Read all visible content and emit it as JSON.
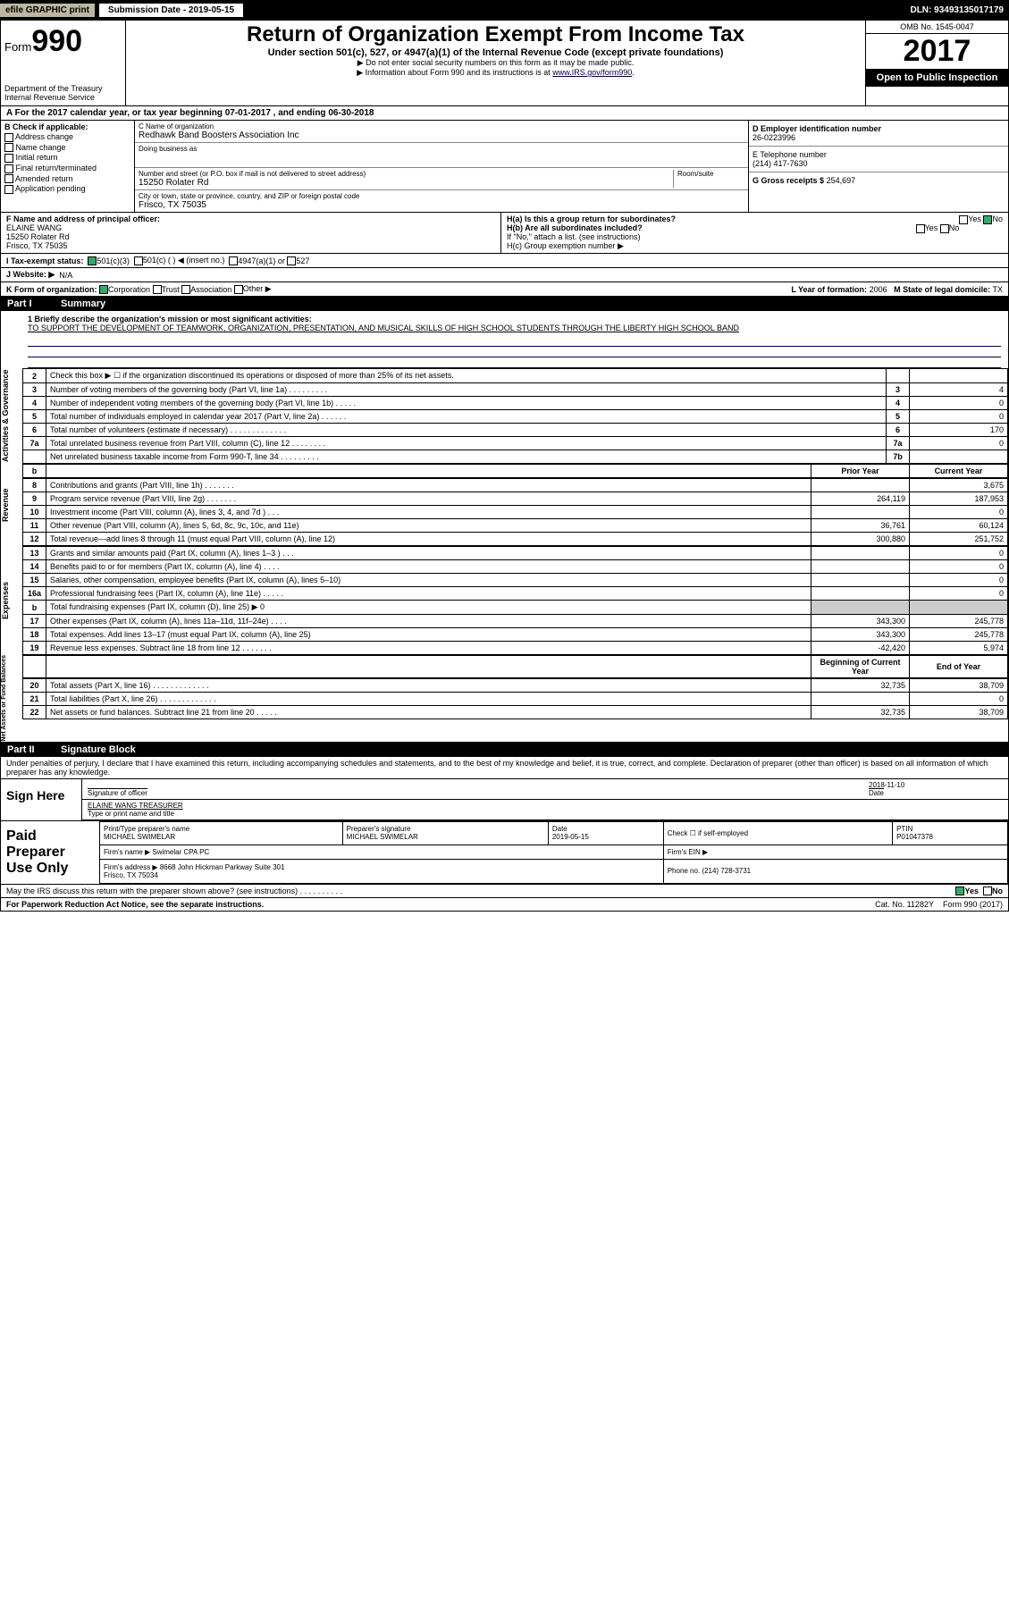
{
  "topbar": {
    "efile": "efile GRAPHIC print",
    "submission": "Submission Date - 2019-05-15",
    "dln": "DLN: 93493135017179"
  },
  "header": {
    "form_prefix": "Form",
    "form_num": "990",
    "dept": "Department of the Treasury\nInternal Revenue Service",
    "title": "Return of Organization Exempt From Income Tax",
    "subtitle": "Under section 501(c), 527, or 4947(a)(1) of the Internal Revenue Code (except private foundations)",
    "note1": "▶ Do not enter social security numbers on this form as it may be made public.",
    "note2": "▶ Information about Form 990 and its instructions is at ",
    "note2_link": "www.IRS.gov/form990",
    "omb": "OMB No. 1545-0047",
    "year": "2017",
    "open": "Open to Public Inspection"
  },
  "row_a": "A For the 2017 calendar year, or tax year beginning 07-01-2017     , and ending 06-30-2018",
  "col_b": {
    "label": "B Check if applicable:",
    "items": [
      "Address change",
      "Name change",
      "Initial return",
      "Final return/terminated",
      "Amended return",
      "Application pending"
    ]
  },
  "col_c": {
    "name_lbl": "C Name of organization",
    "name": "Redhawk Band Boosters Association Inc",
    "dba_lbl": "Doing business as",
    "dba": "",
    "addr_lbl": "Number and street (or P.O. box if mail is not delivered to street address)",
    "room_lbl": "Room/suite",
    "addr": "15250 Rolater Rd",
    "city_lbl": "City or town, state or province, country, and ZIP or foreign postal code",
    "city": "Frisco, TX  75035"
  },
  "col_d": {
    "ein_lbl": "D Employer identification number",
    "ein": "26-0223996",
    "tel_lbl": "E Telephone number",
    "tel": "(214) 417-7630",
    "gross_lbl": "G Gross receipts $",
    "gross": "254,697"
  },
  "sec_f": {
    "lbl": "F  Name and address of principal officer:",
    "name": "ELAINE WANG",
    "addr1": "15250 Rolater Rd",
    "addr2": "Frisco, TX  75035"
  },
  "sec_h": {
    "ha": "H(a)  Is this a group return for subordinates?",
    "ha_ans": "No",
    "hb": "H(b)  Are all subordinates included?",
    "hb_note": "If \"No,\" attach a list. (see instructions)",
    "hc": "H(c)  Group exemption number ▶"
  },
  "row_i": {
    "lbl": "I    Tax-exempt status:",
    "opts": [
      "501(c)(3)",
      "501(c) (  ) ◀ (insert no.)",
      "4947(a)(1) or",
      "527"
    ]
  },
  "row_j": {
    "lbl": "J   Website: ▶",
    "val": "N/A"
  },
  "row_k": {
    "lbl": "K Form of organization:",
    "opts": [
      "Corporation",
      "Trust",
      "Association",
      "Other ▶"
    ],
    "l_lbl": "L Year of formation:",
    "l_val": "2006",
    "m_lbl": "M State of legal domicile:",
    "m_val": "TX"
  },
  "part1": {
    "hdr": "Part I",
    "title": "Summary"
  },
  "mission": {
    "lbl": "1  Briefly describe the organization's mission or most significant activities:",
    "txt": "TO SUPPORT THE DEVELOPMENT OF TEAMWORK, ORGANIZATION, PRESENTATION, AND MUSICAL SKILLS OF HIGH SCHOOL STUDENTS THROUGH THE LIBERTY HIGH SCHOOL BAND"
  },
  "gov_rows": [
    {
      "n": "2",
      "d": "Check this box ▶ ☐ if the organization discontinued its operations or disposed of more than 25% of its net assets.",
      "box": "",
      "v": ""
    },
    {
      "n": "3",
      "d": "Number of voting members of the governing body (Part VI, line 1a)   .    .    .    .    .    .    .    .    .",
      "box": "3",
      "v": "4"
    },
    {
      "n": "4",
      "d": "Number of independent voting members of the governing body (Part VI, line 1b)   .    .    .    .    .",
      "box": "4",
      "v": "0"
    },
    {
      "n": "5",
      "d": "Total number of individuals employed in calendar year 2017 (Part V, line 2a)   .    .    .    .    .    .",
      "box": "5",
      "v": "0"
    },
    {
      "n": "6",
      "d": "Total number of volunteers (estimate if necessary)   .    .    .    .    .    .    .    .    .    .    .    .    .",
      "box": "6",
      "v": "170"
    },
    {
      "n": "7a",
      "d": "Total unrelated business revenue from Part VIII, column (C), line 12   .    .    .    .    .    .    .    .",
      "box": "7a",
      "v": "0"
    },
    {
      "n": "",
      "d": "Net unrelated business taxable income from Form 990-T, line 34   .    .    .    .    .    .    .    .    .",
      "box": "7b",
      "v": ""
    }
  ],
  "fin_hdr": {
    "prior": "Prior Year",
    "curr": "Current Year",
    "b": "b"
  },
  "revenue_rows": [
    {
      "n": "8",
      "d": "Contributions and grants (Part VIII, line 1h)   .    .    .    .    .    .    .",
      "p": "",
      "c": "3,675"
    },
    {
      "n": "9",
      "d": "Program service revenue (Part VIII, line 2g)   .    .    .    .    .    .    .",
      "p": "264,119",
      "c": "187,953"
    },
    {
      "n": "10",
      "d": "Investment income (Part VIII, column (A), lines 3, 4, and 7d )   .    .    .",
      "p": "",
      "c": "0"
    },
    {
      "n": "11",
      "d": "Other revenue (Part VIII, column (A), lines 5, 6d, 8c, 9c, 10c, and 11e)",
      "p": "36,761",
      "c": "60,124"
    },
    {
      "n": "12",
      "d": "Total revenue—add lines 8 through 11 (must equal Part VIII, column (A), line 12)",
      "p": "300,880",
      "c": "251,752"
    }
  ],
  "expense_rows": [
    {
      "n": "13",
      "d": "Grants and similar amounts paid (Part IX, column (A), lines 1–3 )   .    .    .",
      "p": "",
      "c": "0"
    },
    {
      "n": "14",
      "d": "Benefits paid to or for members (Part IX, column (A), line 4)   .    .    .    .",
      "p": "",
      "c": "0"
    },
    {
      "n": "15",
      "d": "Salaries, other compensation, employee benefits (Part IX, column (A), lines 5–10)",
      "p": "",
      "c": "0"
    },
    {
      "n": "16a",
      "d": "Professional fundraising fees (Part IX, column (A), line 11e)   .    .    .    .    .",
      "p": "",
      "c": "0"
    },
    {
      "n": "b",
      "d": "Total fundraising expenses (Part IX, column (D), line 25) ▶ 0",
      "p": "GRAY",
      "c": "GRAY"
    },
    {
      "n": "17",
      "d": "Other expenses (Part IX, column (A), lines 11a–11d, 11f–24e)   .    .    .    .",
      "p": "343,300",
      "c": "245,778"
    },
    {
      "n": "18",
      "d": "Total expenses. Add lines 13–17 (must equal Part IX, column (A), line 25)",
      "p": "343,300",
      "c": "245,778"
    },
    {
      "n": "19",
      "d": "Revenue less expenses. Subtract line 18 from line 12   .    .    .    .    .    .    .",
      "p": "-42,420",
      "c": "5,974"
    }
  ],
  "net_hdr": {
    "beg": "Beginning of Current Year",
    "end": "End of Year"
  },
  "net_rows": [
    {
      "n": "20",
      "d": "Total assets (Part X, line 16)   .    .    .    .    .    .    .    .    .    .    .    .    .",
      "p": "32,735",
      "c": "38,709"
    },
    {
      "n": "21",
      "d": "Total liabilities (Part X, line 26)   .    .    .    .    .    .    .    .    .    .    .    .    .",
      "p": "",
      "c": "0"
    },
    {
      "n": "22",
      "d": "Net assets or fund balances. Subtract line 21 from line 20   .    .    .    .    .",
      "p": "32,735",
      "c": "38,709"
    }
  ],
  "side_labels": {
    "gov": "Activities & Governance",
    "rev": "Revenue",
    "exp": "Expenses",
    "net": "Net Assets or Fund Balances"
  },
  "part2": {
    "hdr": "Part II",
    "title": "Signature Block"
  },
  "perjury": "Under penalties of perjury, I declare that I have examined this return, including accompanying schedules and statements, and to the best of my knowledge and belief, it is true, correct, and complete. Declaration of preparer (other than officer) is based on all information of which preparer has any knowledge.",
  "sign": {
    "here": "Sign Here",
    "sig_lbl": "Signature of officer",
    "date_lbl": "Date",
    "date": "2018-11-10",
    "name": "ELAINE WANG TREASURER",
    "name_lbl": "Type or print name and title"
  },
  "prep": {
    "lbl": "Paid Preparer Use Only",
    "pname_lbl": "Print/Type preparer's name",
    "pname": "MICHAEL SWIMELAR",
    "psig_lbl": "Preparer's signature",
    "psig": "MICHAEL SWIMELAR",
    "pdate_lbl": "Date",
    "pdate": "2019-05-15",
    "self_lbl": "Check ☐ if self-employed",
    "ptin_lbl": "PTIN",
    "ptin": "P01047378",
    "firm_lbl": "Firm's name   ▶",
    "firm": "Swimelar CPA PC",
    "fein_lbl": "Firm's EIN ▶",
    "faddr_lbl": "Firm's address ▶",
    "faddr": "8668 John Hickman Parkway Suite 301\nFrisco, TX  75034",
    "fphone_lbl": "Phone no.",
    "fphone": "(214) 728-3731"
  },
  "discuss": {
    "q": "May the IRS discuss this return with the preparer shown above? (see instructions)   .    .    .    .    .    .    .    .    .    .",
    "yes": "Yes",
    "no": "No"
  },
  "footer": {
    "pra": "For Paperwork Reduction Act Notice, see the separate instructions.",
    "cat": "Cat. No. 11282Y",
    "form": "Form 990 (2017)"
  }
}
